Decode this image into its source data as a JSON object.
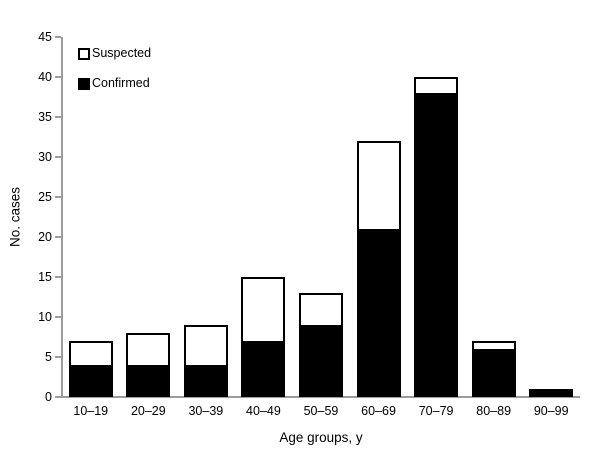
{
  "chart_data": {
    "type": "bar",
    "stacked": true,
    "title": "",
    "xlabel": "Age groups, y",
    "ylabel": "No. cases",
    "categories": [
      "10–19",
      "20–29",
      "30–39",
      "40–49",
      "50–59",
      "60–69",
      "70–79",
      "80–89",
      "90–99"
    ],
    "series": [
      {
        "name": "Confirmed",
        "values": [
          4,
          4,
          4,
          7,
          9,
          21,
          38,
          6,
          1
        ],
        "fill": "#000000",
        "border": "#000000"
      },
      {
        "name": "Suspected",
        "values": [
          3,
          4,
          5,
          8,
          4,
          11,
          2,
          1,
          0
        ],
        "fill": "#ffffff",
        "border": "#000000"
      }
    ],
    "totals": [
      7,
      8,
      9,
      15,
      13,
      32,
      40,
      7,
      1
    ],
    "ylim": [
      0,
      45
    ],
    "ytick_step": 5,
    "yticks": [
      0,
      5,
      10,
      15,
      20,
      25,
      30,
      35,
      40,
      45
    ],
    "grid": false,
    "legend": {
      "position": "top-left",
      "items": [
        {
          "label": "Suspected",
          "swatch_fill": "#ffffff",
          "swatch_border": "#000000"
        },
        {
          "label": "Confirmed",
          "swatch_fill": "#000000",
          "swatch_border": "#000000"
        }
      ]
    },
    "colors": {
      "background": "#ffffff",
      "axis_line": "#9b9b9b",
      "text": "#000000",
      "confirmed_fill": "#000000",
      "suspected_fill": "#ffffff",
      "bar_border": "#000000"
    }
  }
}
